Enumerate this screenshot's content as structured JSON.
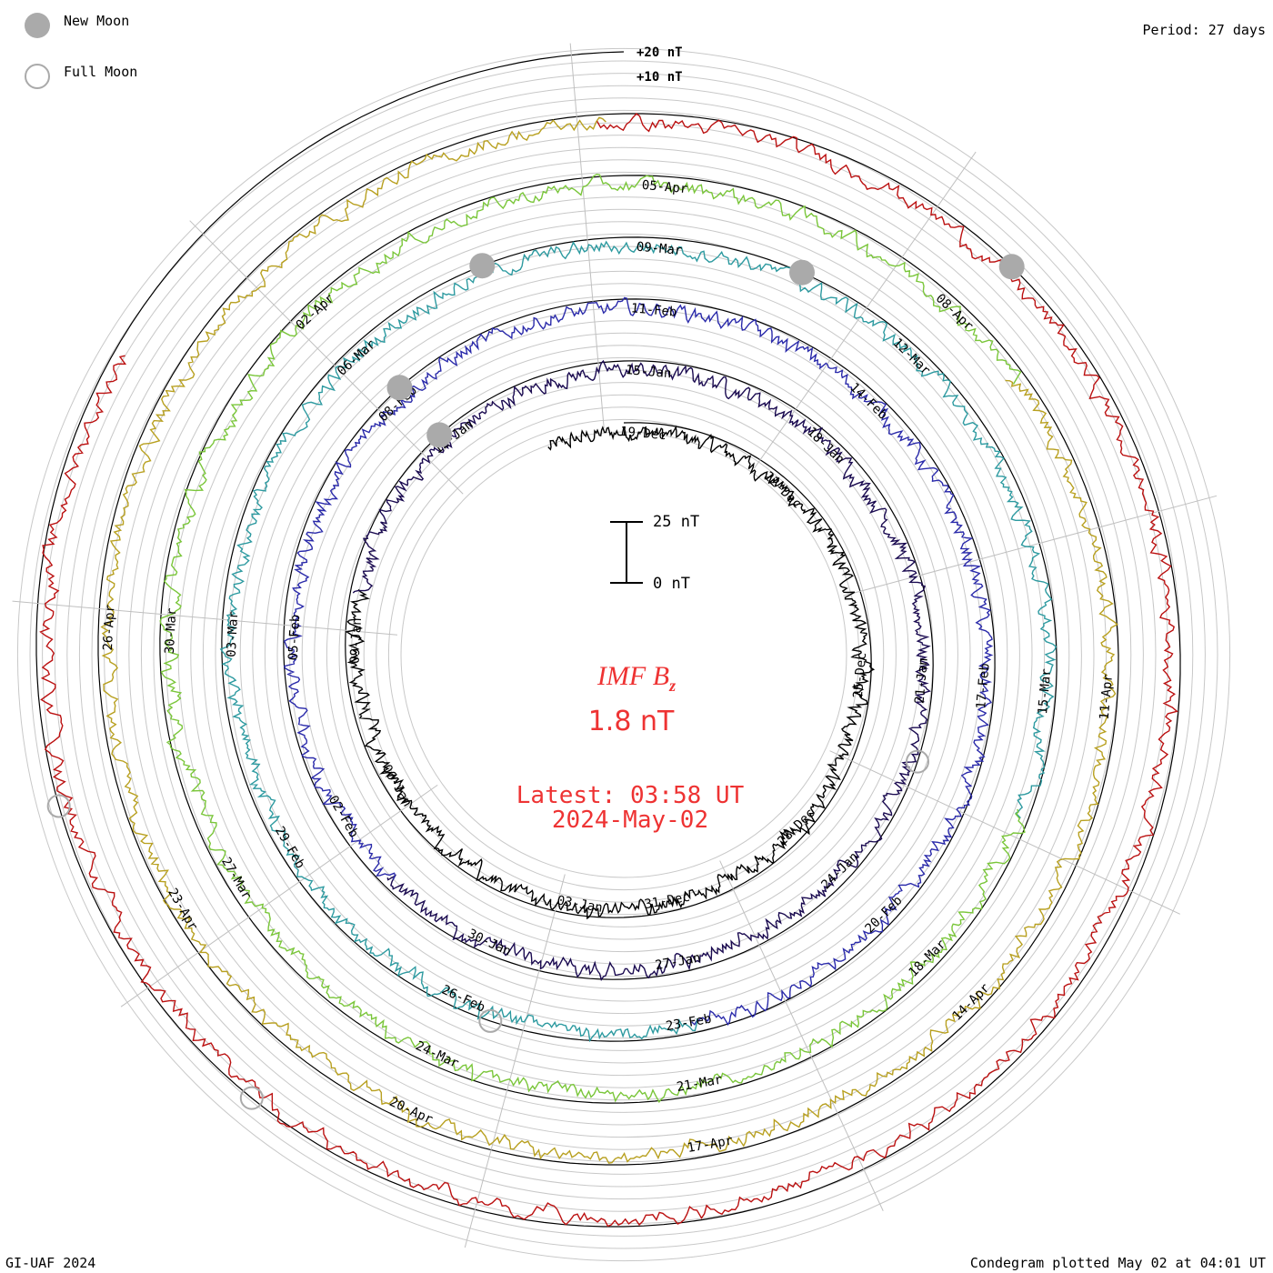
{
  "legend": {
    "new_moon_label": "New Moon",
    "full_moon_label": "Full Moon",
    "new_moon_color": "#aaaaaa",
    "full_moon_color": "#aaaaaa"
  },
  "header": {
    "period_label": "Period: 27 days"
  },
  "footer": {
    "credit": "GI-UAF 2024",
    "plotted": "Condegram plotted May 02 at 04:01 UT"
  },
  "center": {
    "param_name": "IMF B",
    "param_sub": "z",
    "value": "1.8 nT",
    "latest_label": "Latest: 03:58 UT",
    "latest_date": "2024-May-02",
    "scale_top": "25 nT",
    "scale_bottom": "0 nT",
    "accent_color": "#ee3333"
  },
  "chart_data": {
    "type": "line",
    "title": "IMF Bz condegram",
    "scale_labels": [
      "+20 nT",
      "+10 nT"
    ],
    "period_days": 27,
    "spiral_turns": 5,
    "series_colors": [
      "#000000",
      "#1a0a50",
      "#2a2aaa",
      "#2d9aa0",
      "#7ac63a",
      "#b8a020",
      "#bb1111"
    ],
    "date_labels": [
      {
        "label": "19-Dec",
        "angle": 5
      },
      {
        "label": "22-Dec",
        "angle": 44
      },
      {
        "label": "25-Dec",
        "angle": 95
      },
      {
        "label": "28-Dec",
        "angle": 135
      },
      {
        "label": "31-Dec",
        "angle": 170
      },
      {
        "label": "03-Jan",
        "angle": 190
      },
      {
        "label": "06-Jan",
        "angle": 240
      },
      {
        "label": "09-Jan",
        "angle": 273
      },
      {
        "label": "12-Jan",
        "angle": 322
      },
      {
        "label": "15-Jan",
        "angle": 5
      },
      {
        "label": "18-Jan",
        "angle": 44
      },
      {
        "label": "21-Jan",
        "angle": 95
      },
      {
        "label": "24-Jan",
        "angle": 135
      },
      {
        "label": "27-Jan",
        "angle": 170
      },
      {
        "label": "30-Jan",
        "angle": 205
      },
      {
        "label": "02-Feb",
        "angle": 240
      },
      {
        "label": "05-Feb",
        "angle": 273
      },
      {
        "label": "08-Feb",
        "angle": 318
      },
      {
        "label": "11-Feb",
        "angle": 5
      },
      {
        "label": "14-Feb",
        "angle": 44
      },
      {
        "label": "17-Feb",
        "angle": 95
      },
      {
        "label": "20-Feb",
        "angle": 135
      },
      {
        "label": "23-Feb",
        "angle": 170
      },
      {
        "label": "26-Feb",
        "angle": 205
      },
      {
        "label": "29-Feb",
        "angle": 240
      },
      {
        "label": "03-Mar",
        "angle": 273
      },
      {
        "label": "06-Mar",
        "angle": 318
      },
      {
        "label": "09-Mar",
        "angle": 5
      },
      {
        "label": "12-Mar",
        "angle": 44
      },
      {
        "label": "15-Mar",
        "angle": 95
      },
      {
        "label": "18-Mar",
        "angle": 135
      },
      {
        "label": "21-Mar",
        "angle": 170
      },
      {
        "label": "24-Mar",
        "angle": 205
      },
      {
        "label": "27-Mar",
        "angle": 240
      },
      {
        "label": "30-Mar",
        "angle": 273
      },
      {
        "label": "02-Apr",
        "angle": 318
      },
      {
        "label": "05-Apr",
        "angle": 5
      },
      {
        "label": "08-Apr",
        "angle": 44
      },
      {
        "label": "11-Apr",
        "angle": 95
      },
      {
        "label": "14-Apr",
        "angle": 135
      },
      {
        "label": "17-Apr",
        "angle": 170
      },
      {
        "label": "20-Apr",
        "angle": 205
      },
      {
        "label": "23-Apr",
        "angle": 240
      },
      {
        "label": "26-Apr",
        "angle": 273
      }
    ]
  }
}
